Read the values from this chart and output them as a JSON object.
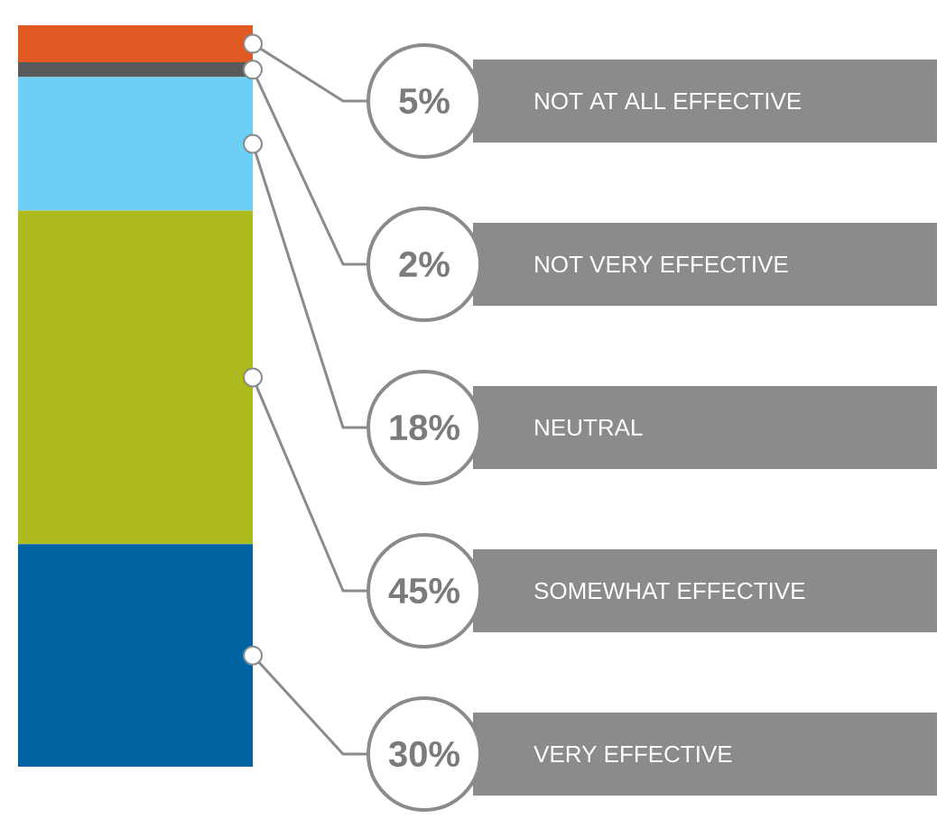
{
  "chart_data": {
    "type": "bar",
    "stacked": true,
    "categories": [
      null
    ],
    "series": [
      {
        "name": "VERY EFFECTIVE",
        "color": "#0062a0",
        "values": [
          30
        ],
        "value_labels": [
          "30%"
        ]
      },
      {
        "name": "SOMEWHAT EFFECTIVE",
        "color": "#aebb1f",
        "values": [
          45
        ],
        "value_labels": [
          "45%"
        ]
      },
      {
        "name": "NEUTRAL",
        "color": "#6ccff3",
        "values": [
          18
        ],
        "value_labels": [
          "18%"
        ]
      },
      {
        "name": "NOT VERY EFFECTIVE",
        "color": "#58595b",
        "values": [
          2
        ],
        "value_labels": [
          "2%"
        ]
      },
      {
        "name": "NOT AT ALL EFFECTIVE",
        "color": "#e05a24",
        "values": [
          5
        ],
        "value_labels": [
          "5%"
        ]
      }
    ]
  }
}
